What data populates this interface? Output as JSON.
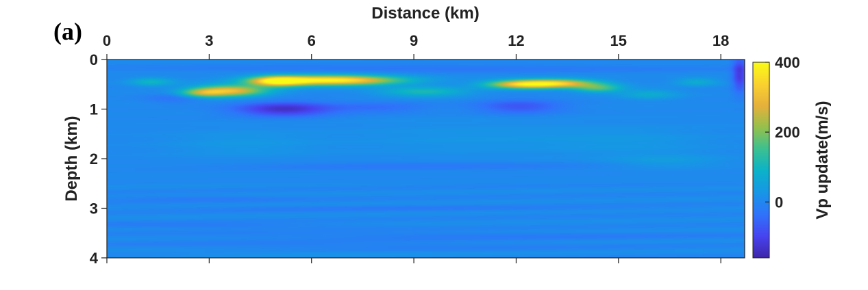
{
  "panel_label": "(a)",
  "colors": {
    "colormap": [
      "#3e26a8",
      "#4743f0",
      "#2f73fb",
      "#1796e6",
      "#0bb2c9",
      "#3bc092",
      "#94c04c",
      "#e6b03b",
      "#fad22e",
      "#f9fb15"
    ],
    "axis": "#222222",
    "background_value_color": "#2d75f7"
  },
  "chart_data": {
    "type": "heatmap",
    "title": "",
    "xlabel": "Distance (km)",
    "ylabel": "Depth (km)",
    "colorbar_label": "Vp update(m/s)",
    "x_axis_position": "top",
    "xlim": [
      0,
      18.7
    ],
    "ylim": [
      0,
      4
    ],
    "y_reversed": true,
    "clim": [
      -160,
      400
    ],
    "x_ticks": [
      0,
      3,
      6,
      9,
      12,
      15,
      18
    ],
    "x_tick_labels": [
      "0",
      "3",
      "6",
      "9",
      "12",
      "15",
      "18"
    ],
    "y_ticks": [
      0,
      1,
      2,
      3,
      4
    ],
    "y_tick_labels": [
      "0",
      "1",
      "2",
      "3",
      "4"
    ],
    "colorbar_ticks": [
      0,
      200,
      400
    ],
    "colorbar_tick_labels": [
      "0",
      "200",
      "400"
    ],
    "background_value": 5,
    "features": [
      {
        "x": 6.6,
        "y": 0.42,
        "sx": 1.35,
        "sy": 0.07,
        "value": 390
      },
      {
        "x": 5.0,
        "y": 0.44,
        "sx": 0.55,
        "sy": 0.07,
        "value": 320
      },
      {
        "x": 3.6,
        "y": 0.63,
        "sx": 0.75,
        "sy": 0.08,
        "value": 290
      },
      {
        "x": 2.8,
        "y": 0.68,
        "sx": 0.45,
        "sy": 0.06,
        "value": 150
      },
      {
        "x": 12.2,
        "y": 0.5,
        "sx": 0.75,
        "sy": 0.06,
        "value": 300
      },
      {
        "x": 13.3,
        "y": 0.48,
        "sx": 0.8,
        "sy": 0.06,
        "value": 260
      },
      {
        "x": 14.4,
        "y": 0.58,
        "sx": 0.5,
        "sy": 0.06,
        "value": 150
      },
      {
        "x": 9.3,
        "y": 0.65,
        "sx": 0.9,
        "sy": 0.07,
        "value": 110
      },
      {
        "x": 1.3,
        "y": 0.45,
        "sx": 0.45,
        "sy": 0.06,
        "value": 90
      },
      {
        "x": 17.3,
        "y": 0.45,
        "sx": 0.45,
        "sy": 0.06,
        "value": 70
      },
      {
        "x": 15.9,
        "y": 0.7,
        "sx": 0.6,
        "sy": 0.07,
        "value": 70
      },
      {
        "x": 5.2,
        "y": 1.0,
        "sx": 1.0,
        "sy": 0.1,
        "value": -140
      },
      {
        "x": 12.1,
        "y": 0.95,
        "sx": 0.9,
        "sy": 0.1,
        "value": -80
      },
      {
        "x": 8.0,
        "y": 0.97,
        "sx": 1.0,
        "sy": 0.08,
        "value": -45
      },
      {
        "x": 2.0,
        "y": 0.78,
        "sx": 0.6,
        "sy": 0.07,
        "value": -40
      },
      {
        "x": 9.3,
        "y": 0.18,
        "sx": 6.0,
        "sy": 0.05,
        "value": -35
      },
      {
        "x": 18.55,
        "y": 0.3,
        "sx": 0.15,
        "sy": 0.25,
        "value": -120
      },
      {
        "x": 4.0,
        "y": 1.7,
        "sx": 1.6,
        "sy": 0.2,
        "value": 25
      },
      {
        "x": 10.5,
        "y": 1.6,
        "sx": 2.5,
        "sy": 0.25,
        "value": 20
      },
      {
        "x": 15.3,
        "y": 1.65,
        "sx": 1.8,
        "sy": 0.2,
        "value": 25
      },
      {
        "x": 9.0,
        "y": 2.15,
        "sx": 4.0,
        "sy": 0.06,
        "value": -30
      },
      {
        "x": 16.4,
        "y": 2.05,
        "sx": 1.2,
        "sy": 0.1,
        "value": 35
      },
      {
        "x": 2.5,
        "y": 2.8,
        "sx": 2.0,
        "sy": 0.04,
        "value": -25
      },
      {
        "x": 8.0,
        "y": 3.0,
        "sx": 5.0,
        "sy": 0.04,
        "value": -20
      },
      {
        "x": 3.0,
        "y": 3.35,
        "sx": 3.0,
        "sy": 0.04,
        "value": -28
      },
      {
        "x": 10.0,
        "y": 3.55,
        "sx": 6.0,
        "sy": 0.05,
        "value": -25
      },
      {
        "x": 7.0,
        "y": 3.75,
        "sx": 5.0,
        "sy": 0.05,
        "value": -22
      },
      {
        "x": 4.5,
        "y": 3.9,
        "sx": 4.0,
        "sy": 0.04,
        "value": 15
      }
    ]
  }
}
